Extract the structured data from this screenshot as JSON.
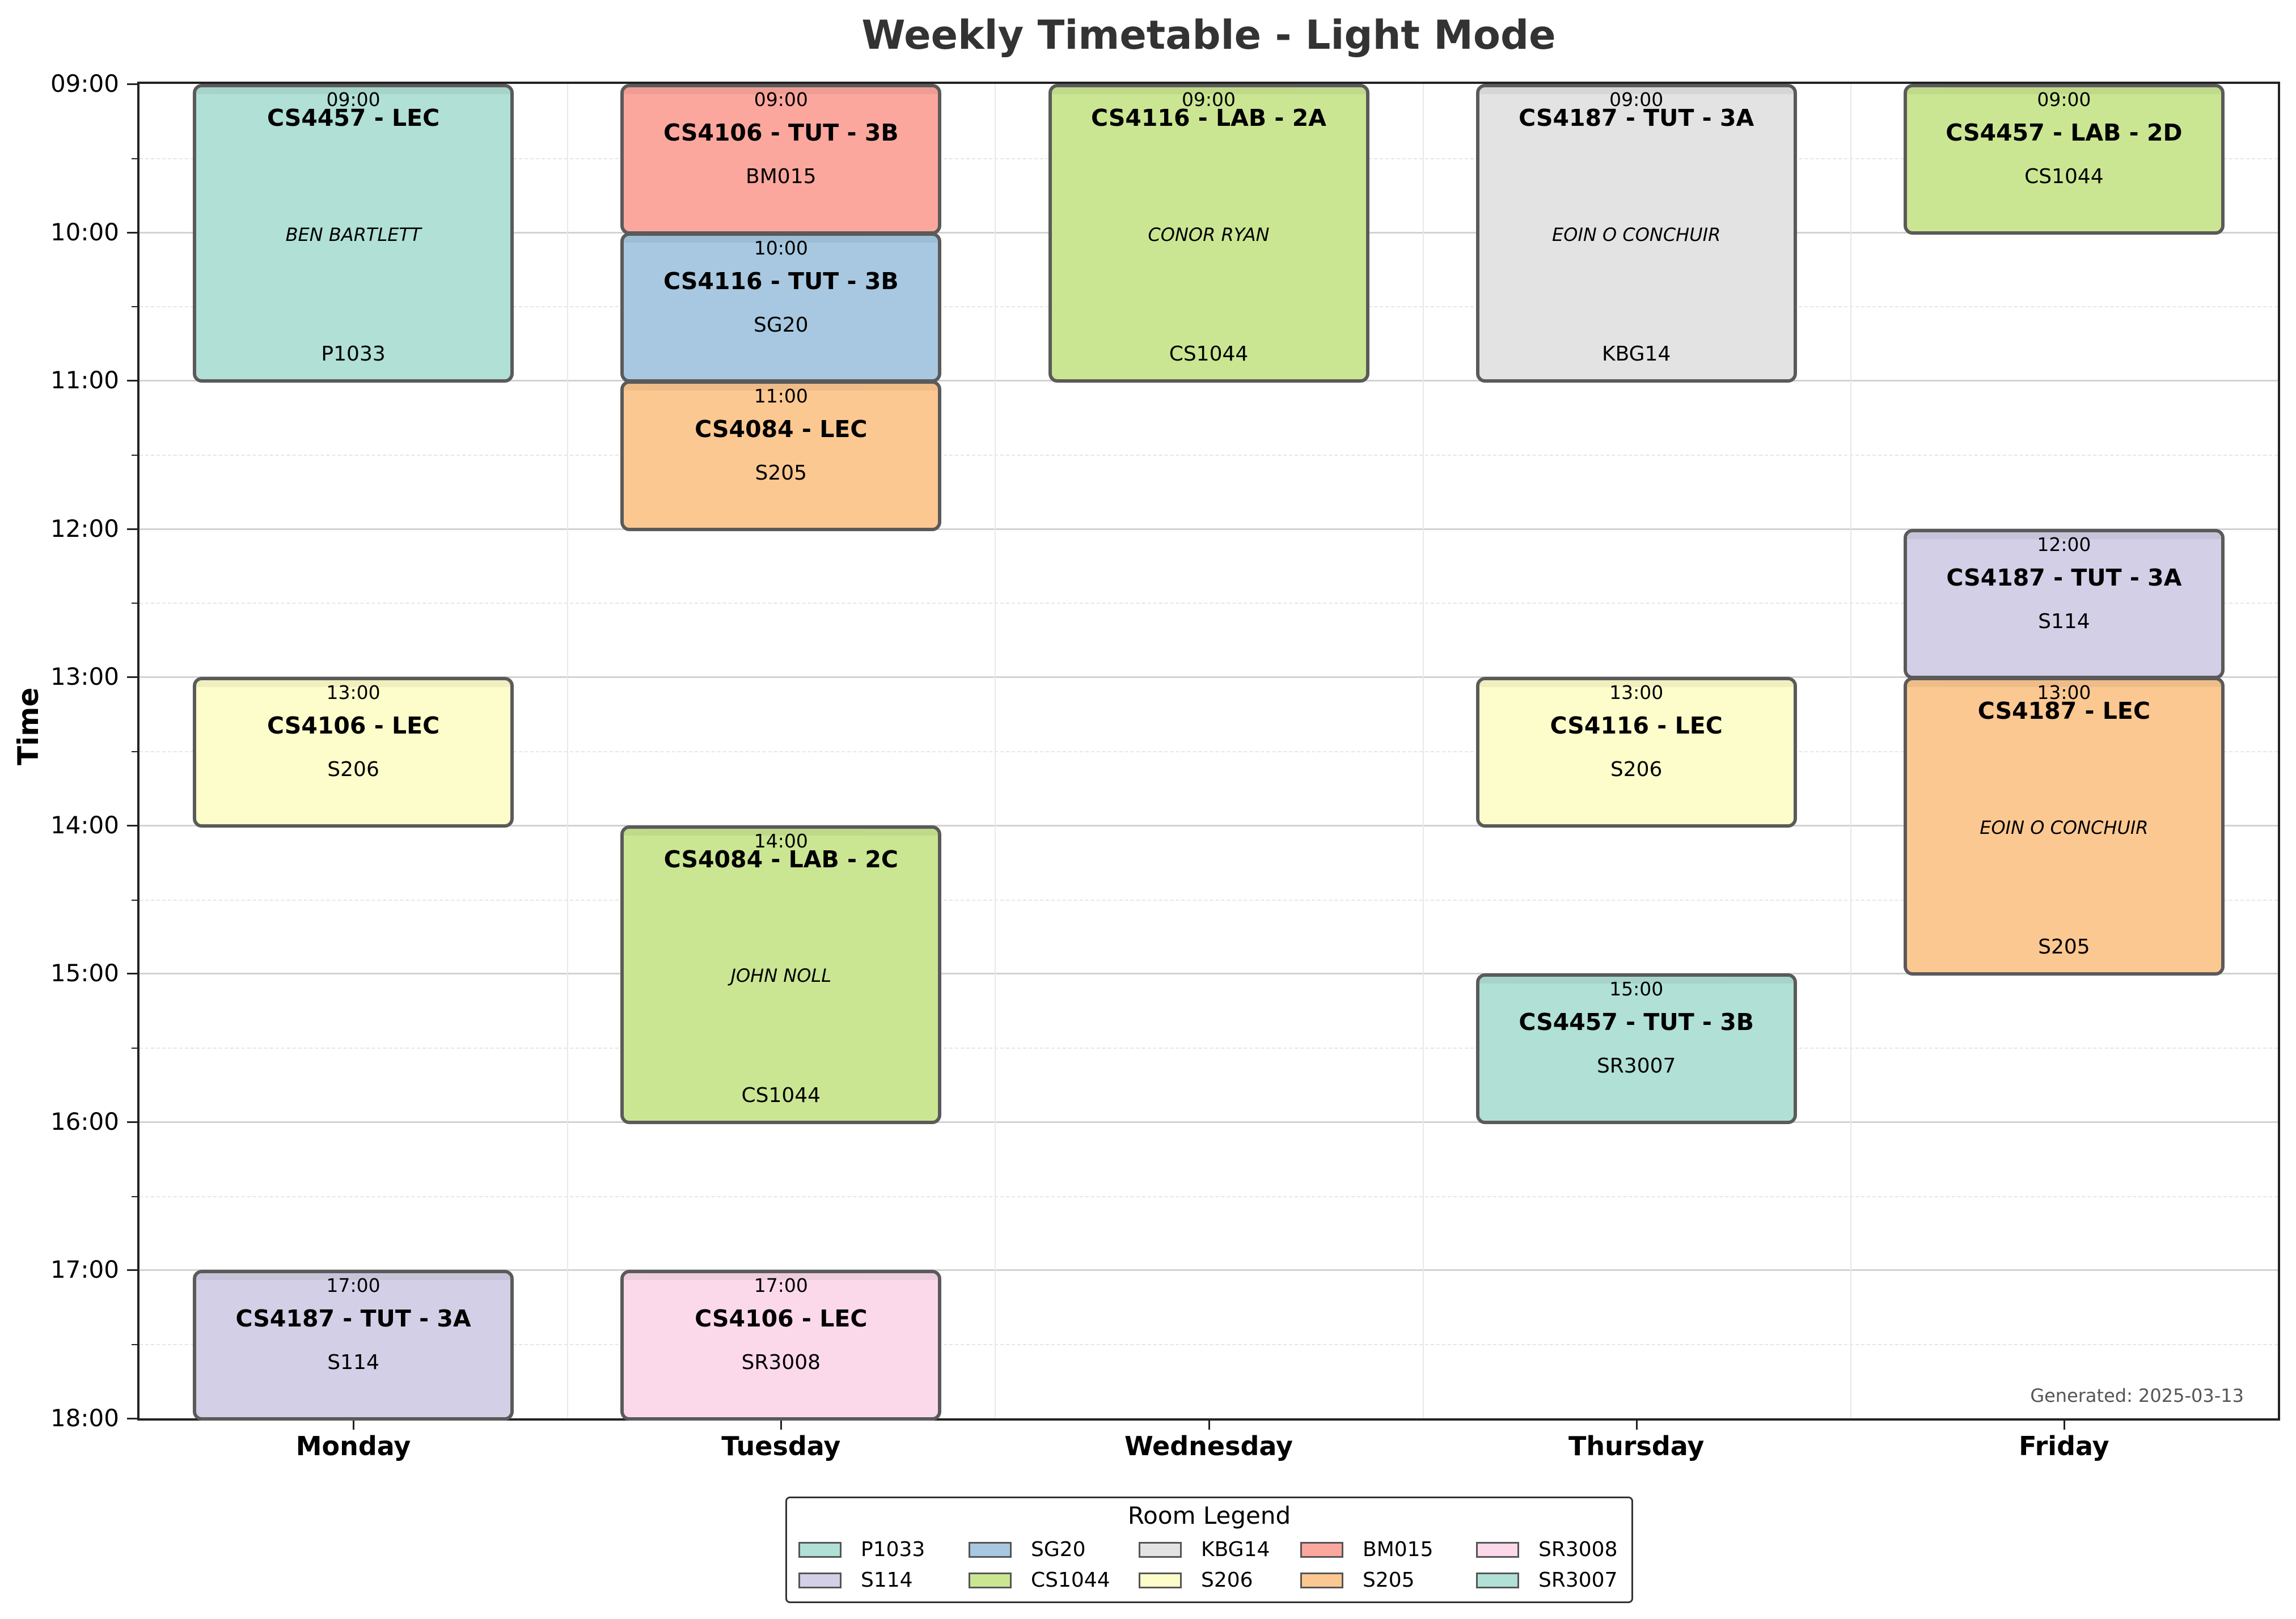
{
  "chart_data": {
    "type": "timetable",
    "title": "Weekly Timetable - Light Mode",
    "ylabel": "Time",
    "days": [
      "Monday",
      "Tuesday",
      "Wednesday",
      "Thursday",
      "Friday"
    ],
    "time_ticks": [
      "09:00",
      "10:00",
      "11:00",
      "12:00",
      "13:00",
      "14:00",
      "15:00",
      "16:00",
      "17:00",
      "18:00"
    ],
    "y_range": [
      9,
      18
    ],
    "grid": true,
    "footer": "Generated: 2025-03-13",
    "events": [
      {
        "day": "Monday",
        "start": 9,
        "end": 11,
        "time": "09:00",
        "course": "CS4457 - LEC",
        "lecturer": "BEN BARTLETT",
        "room": "P1033"
      },
      {
        "day": "Monday",
        "start": 13,
        "end": 14,
        "time": "13:00",
        "course": "CS4106 - LEC",
        "lecturer": "",
        "room": "S206"
      },
      {
        "day": "Monday",
        "start": 17,
        "end": 18,
        "time": "17:00",
        "course": "CS4187 - TUT - 3A",
        "lecturer": "",
        "room": "S114"
      },
      {
        "day": "Tuesday",
        "start": 9,
        "end": 10,
        "time": "09:00",
        "course": "CS4106 - TUT - 3B",
        "lecturer": "",
        "room": "BM015"
      },
      {
        "day": "Tuesday",
        "start": 10,
        "end": 11,
        "time": "10:00",
        "course": "CS4116 - TUT - 3B",
        "lecturer": "",
        "room": "SG20"
      },
      {
        "day": "Tuesday",
        "start": 11,
        "end": 12,
        "time": "11:00",
        "course": "CS4084 - LEC",
        "lecturer": "",
        "room": "S205"
      },
      {
        "day": "Tuesday",
        "start": 14,
        "end": 16,
        "time": "14:00",
        "course": "CS4084 - LAB - 2C",
        "lecturer": "JOHN NOLL",
        "room": "CS1044"
      },
      {
        "day": "Tuesday",
        "start": 17,
        "end": 18,
        "time": "17:00",
        "course": "CS4106 - LEC",
        "lecturer": "",
        "room": "SR3008"
      },
      {
        "day": "Wednesday",
        "start": 9,
        "end": 11,
        "time": "09:00",
        "course": "CS4116 - LAB - 2A",
        "lecturer": "CONOR RYAN",
        "room": "CS1044"
      },
      {
        "day": "Thursday",
        "start": 9,
        "end": 11,
        "time": "09:00",
        "course": "CS4187 - TUT - 3A",
        "lecturer": "EOIN O CONCHUIR",
        "room": "KBG14"
      },
      {
        "day": "Thursday",
        "start": 13,
        "end": 14,
        "time": "13:00",
        "course": "CS4116 - LEC",
        "lecturer": "",
        "room": "S206"
      },
      {
        "day": "Thursday",
        "start": 15,
        "end": 16,
        "time": "15:00",
        "course": "CS4457 - TUT - 3B",
        "lecturer": "",
        "room": "SR3007"
      },
      {
        "day": "Friday",
        "start": 9,
        "end": 10,
        "time": "09:00",
        "course": "CS4457 - LAB - 2D",
        "lecturer": "",
        "room": "CS1044"
      },
      {
        "day": "Friday",
        "start": 12,
        "end": 13,
        "time": "12:00",
        "course": "CS4187 - TUT - 3A",
        "lecturer": "",
        "room": "S114"
      },
      {
        "day": "Friday",
        "start": 13,
        "end": 15,
        "time": "13:00",
        "course": "CS4187 - LEC",
        "lecturer": "EOIN O CONCHUIR",
        "room": "S205"
      }
    ],
    "legend": {
      "title": "Room Legend",
      "placement": "bottom-center",
      "rooms": [
        {
          "room": "P1033",
          "color": "#b0e0d6"
        },
        {
          "room": "S114",
          "color": "#d3cfe6"
        },
        {
          "room": "SG20",
          "color": "#a7c8e0"
        },
        {
          "room": "CS1044",
          "color": "#cbe692"
        },
        {
          "room": "KBG14",
          "color": "#e3e3e3"
        },
        {
          "room": "S206",
          "color": "#fdfdcb"
        },
        {
          "room": "BM015",
          "color": "#fca79d"
        },
        {
          "room": "S205",
          "color": "#fcc891"
        },
        {
          "room": "SR3008",
          "color": "#fbd9ea"
        },
        {
          "room": "SR3007",
          "color": "#b0e0d6"
        }
      ]
    }
  }
}
